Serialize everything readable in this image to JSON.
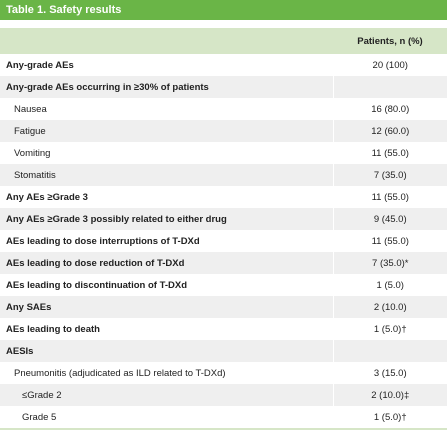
{
  "title": "Table 1. Safety results",
  "header": {
    "col1": "",
    "col2": "Patients, n (%)"
  },
  "rows": [
    {
      "label": "Any-grade AEs",
      "value": "20 (100)",
      "style": "bold"
    },
    {
      "label": "Any-grade AEs occurring in ≥30% of patients",
      "value": "",
      "style": "bold"
    },
    {
      "label": "Nausea",
      "value": "16 (80.0)",
      "style": "sub"
    },
    {
      "label": "Fatigue",
      "value": "12 (60.0)",
      "style": "sub"
    },
    {
      "label": "Vomiting",
      "value": "11 (55.0)",
      "style": "sub"
    },
    {
      "label": "Stomatitis",
      "value": "7 (35.0)",
      "style": "sub"
    },
    {
      "label": "Any AEs ≥Grade 3",
      "value": "11 (55.0)",
      "style": "bold"
    },
    {
      "label": "Any AEs ≥Grade 3 possibly related to either drug",
      "value": "9 (45.0)",
      "style": "bold"
    },
    {
      "label": "AEs leading to dose interruptions of T-DXd",
      "value": "11 (55.0)",
      "style": "bold"
    },
    {
      "label": "AEs leading to dose reduction of T-DXd",
      "value": "7 (35.0)*",
      "style": "bold"
    },
    {
      "label": "AEs leading to discontinuation of T-DXd",
      "value": "1 (5.0)",
      "style": "bold"
    },
    {
      "label": "Any SAEs",
      "value": "2 (10.0)",
      "style": "bold"
    },
    {
      "label": "AEs leading to death",
      "value": "1 (5.0)†",
      "style": "bold"
    },
    {
      "label": "AESIs",
      "value": "",
      "style": "bold"
    },
    {
      "label": "Pneumonitis (adjudicated as ILD related to T-DXd)",
      "value": "3 (15.0)",
      "style": "sub"
    },
    {
      "label": "≤Grade 2",
      "value": "2 (10.0)‡",
      "style": "subsub"
    },
    {
      "label": "Grade 5",
      "value": "1 (5.0)†",
      "style": "subsub"
    }
  ]
}
